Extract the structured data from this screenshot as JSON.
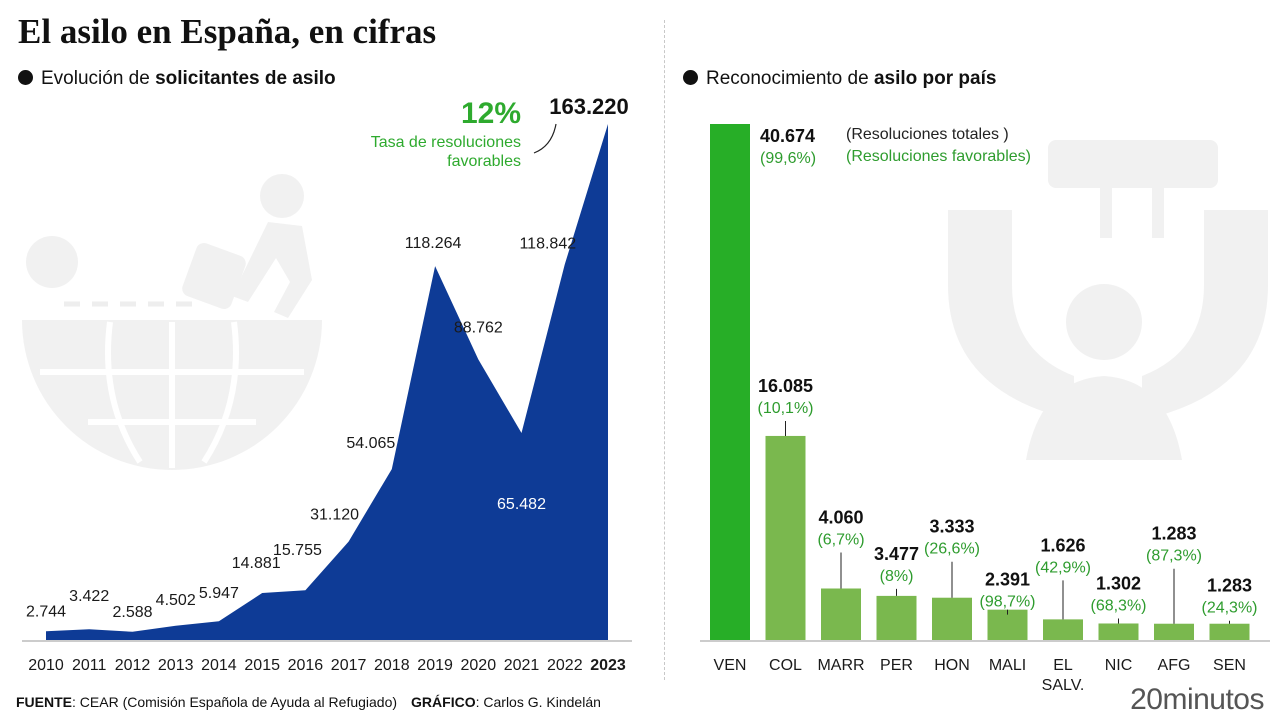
{
  "title": "El asilo en España, en cifras",
  "left_section": {
    "prefix": "Evolución de ",
    "bold": "solicitantes de asilo"
  },
  "right_section": {
    "prefix": "Reconocimiento de ",
    "bold": "asilo por país"
  },
  "annotation": {
    "rate": "12%",
    "line1": "Tasa de resoluciones",
    "line2": "favorables"
  },
  "legend": {
    "totals_label": "(Resoluciones totales )",
    "favorable_label": "(Resoluciones favorables)"
  },
  "footer": {
    "source_label": "FUENTE",
    "source_text": ": CEAR (Comisión Española de Ayuda al Refugiado)",
    "graphic_label": "GRÁFICO",
    "graphic_text": ": Carlos G. Kindelán"
  },
  "brand": "20minutos",
  "colors": {
    "area": "#0e3b96",
    "bar_highlight": "#27ae27",
    "bar": "#7ab84e",
    "accent_green": "#2eaa2e"
  },
  "chart_data": [
    {
      "type": "area",
      "categories": [
        "2010",
        "2011",
        "2012",
        "2013",
        "2014",
        "2015",
        "2016",
        "2017",
        "2018",
        "2019",
        "2020",
        "2021",
        "2022",
        "2023"
      ],
      "values": [
        2744,
        3422,
        2588,
        4502,
        5947,
        14881,
        15755,
        31120,
        54065,
        118264,
        88762,
        65482,
        118842,
        163220
      ],
      "value_labels": [
        "2.744",
        "3.422",
        "2.588",
        "4.502",
        "5.947",
        "14.881",
        "15.755",
        "31.120",
        "54.065",
        "118.264",
        "88.762",
        "65.482",
        "118.842",
        "163.220"
      ],
      "ylim": [
        0,
        163220
      ]
    },
    {
      "type": "bar",
      "categories": [
        "VEN",
        "COL",
        "MARR",
        "PER",
        "HON",
        "MALI",
        "EL SALV.",
        "NIC",
        "AFG",
        "SEN"
      ],
      "values": [
        40674,
        16085,
        4060,
        3477,
        3333,
        2391,
        1626,
        1302,
        1283,
        1283
      ],
      "value_labels": [
        "40.674",
        "16.085",
        "4.060",
        "3.477",
        "3.333",
        "2.391",
        "1.626",
        "1.302",
        "1.283",
        "1.283"
      ],
      "favorable_pct": [
        "(99,6%)",
        "(10,1%)",
        "(6,7%)",
        "(8%)",
        "(26,6%)",
        "(98,7%)",
        "(42,9%)",
        "(68,3%)",
        "(87,3%)",
        "(24,3%)"
      ],
      "ylim": [
        0,
        40674
      ]
    }
  ]
}
